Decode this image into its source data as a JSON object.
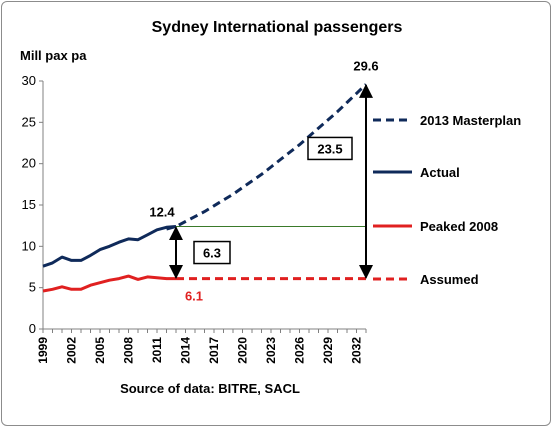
{
  "chart_data": {
    "type": "line",
    "title": "Sydney International passengers",
    "ylabel": "Mill pax pa",
    "xlabel": "",
    "source": "Source of data: BITRE, SACL",
    "ylim": [
      0,
      30
    ],
    "xlim": [
      1999,
      2033
    ],
    "y_ticks": [
      "0",
      "5",
      "10",
      "15",
      "20",
      "25",
      "30"
    ],
    "x_ticks": [
      "1999",
      "2002",
      "2005",
      "2008",
      "2011",
      "2014",
      "2017",
      "2020",
      "2023",
      "2026",
      "2029",
      "2032"
    ],
    "legend_position": "right",
    "colors": {
      "navy": "#0f2a5a",
      "red": "#e02020",
      "green_line": "#3a7a2a"
    },
    "series": [
      {
        "name": "2013 Masterplan",
        "style": "dashed",
        "color": "#0f2a5a",
        "x": [
          2012,
          2013,
          2014,
          2015,
          2016,
          2017,
          2018,
          2019,
          2020,
          2021,
          2022,
          2023,
          2024,
          2025,
          2026,
          2027,
          2028,
          2029,
          2030,
          2031,
          2032,
          2033
        ],
        "y": [
          12.1,
          12.4,
          13.0,
          13.6,
          14.2,
          14.9,
          15.6,
          16.3,
          17.1,
          17.9,
          18.7,
          19.6,
          20.5,
          21.4,
          22.3,
          23.3,
          24.3,
          25.3,
          26.3,
          27.4,
          28.5,
          29.6
        ]
      },
      {
        "name": "Actual",
        "style": "solid",
        "color": "#0f2a5a",
        "x": [
          1999,
          2000,
          2001,
          2002,
          2003,
          2004,
          2005,
          2006,
          2007,
          2008,
          2009,
          2010,
          2011,
          2012,
          2013
        ],
        "y": [
          7.6,
          8.0,
          8.7,
          8.3,
          8.3,
          8.9,
          9.6,
          10.0,
          10.5,
          10.9,
          10.8,
          11.4,
          12.0,
          12.3,
          12.4
        ]
      },
      {
        "name": "Peaked 2008",
        "style": "solid",
        "color": "#e02020",
        "x": [
          1999,
          2000,
          2001,
          2002,
          2003,
          2004,
          2005,
          2006,
          2007,
          2008,
          2009,
          2010,
          2011,
          2012,
          2013
        ],
        "y": [
          4.6,
          4.8,
          5.1,
          4.8,
          4.8,
          5.3,
          5.6,
          5.9,
          6.1,
          6.4,
          6.0,
          6.3,
          6.2,
          6.1,
          6.1
        ]
      },
      {
        "name": "Assumed",
        "style": "dashed",
        "color": "#e02020",
        "x": [
          2013,
          2033
        ],
        "y": [
          6.1,
          6.1
        ]
      }
    ],
    "reference_line": {
      "y": 12.4,
      "x": [
        2013,
        2033
      ]
    },
    "annotations": [
      {
        "text": "29.6",
        "x": 2033,
        "y": 29.6,
        "color": "#000000"
      },
      {
        "text": "12.4",
        "x": 2013,
        "y": 12.4,
        "color": "#000000"
      },
      {
        "text": "6.1",
        "x": 2013,
        "y": 6.1,
        "color": "#e02020"
      },
      {
        "text": "6.3",
        "boxed": true,
        "arrow_x": 2013,
        "arrow_y": [
          6.1,
          12.4
        ]
      },
      {
        "text": "23.5",
        "boxed": true,
        "arrow_x": 2033,
        "arrow_y": [
          6.1,
          29.6
        ]
      }
    ]
  }
}
